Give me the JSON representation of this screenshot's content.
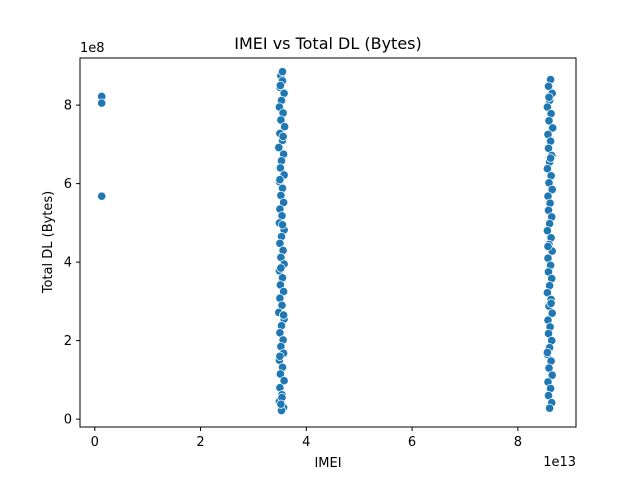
{
  "chart_data": {
    "type": "scatter",
    "title": "IMEI vs Total DL (Bytes)",
    "xlabel": "IMEI",
    "ylabel": "Total DL (Bytes)",
    "x_offset_label": "1e13",
    "y_offset_label": "1e8",
    "xlim": [
      -0.28,
      9.1
    ],
    "ylim": [
      -0.2,
      9.2
    ],
    "xticks": [
      0,
      2,
      4,
      6,
      8
    ],
    "yticks": [
      0,
      2,
      4,
      6,
      8
    ],
    "xtick_labels": [
      "0",
      "2",
      "4",
      "6",
      "8"
    ],
    "ytick_labels": [
      "0",
      "2",
      "4",
      "6",
      "8"
    ],
    "grid": false,
    "legend": "none",
    "color": "#1f77b4",
    "series": [
      {
        "points": [
          [
            0.13,
            8.22
          ],
          [
            0.13,
            8.05
          ],
          [
            0.13,
            5.68
          ],
          [
            3.52,
            8.75
          ],
          [
            3.55,
            8.62
          ],
          [
            3.5,
            8.45
          ],
          [
            3.58,
            8.3
          ],
          [
            3.53,
            8.12
          ],
          [
            3.49,
            7.95
          ],
          [
            3.56,
            7.8
          ],
          [
            3.52,
            7.62
          ],
          [
            3.59,
            7.45
          ],
          [
            3.5,
            7.28
          ],
          [
            3.55,
            7.1
          ],
          [
            3.48,
            6.92
          ],
          [
            3.57,
            6.75
          ],
          [
            3.53,
            6.58
          ],
          [
            3.51,
            6.4
          ],
          [
            3.58,
            6.22
          ],
          [
            3.49,
            6.05
          ],
          [
            3.55,
            5.88
          ],
          [
            3.52,
            5.7
          ],
          [
            3.57,
            5.52
          ],
          [
            3.5,
            5.35
          ],
          [
            3.54,
            5.18
          ],
          [
            3.49,
            5.0
          ],
          [
            3.58,
            4.82
          ],
          [
            3.53,
            4.65
          ],
          [
            3.5,
            4.48
          ],
          [
            3.56,
            4.3
          ],
          [
            3.52,
            4.12
          ],
          [
            3.58,
            3.95
          ],
          [
            3.49,
            3.78
          ],
          [
            3.55,
            3.6
          ],
          [
            3.51,
            3.42
          ],
          [
            3.57,
            3.25
          ],
          [
            3.5,
            3.08
          ],
          [
            3.54,
            2.9
          ],
          [
            3.48,
            2.72
          ],
          [
            3.58,
            2.55
          ],
          [
            3.53,
            2.38
          ],
          [
            3.5,
            2.2
          ],
          [
            3.56,
            2.02
          ],
          [
            3.52,
            1.85
          ],
          [
            3.57,
            1.68
          ],
          [
            3.49,
            1.5
          ],
          [
            3.55,
            1.32
          ],
          [
            3.51,
            1.15
          ],
          [
            3.58,
            0.98
          ],
          [
            3.5,
            0.8
          ],
          [
            3.54,
            0.62
          ],
          [
            3.49,
            0.45
          ],
          [
            3.57,
            0.3
          ],
          [
            3.53,
            0.22
          ],
          [
            3.55,
            8.85
          ],
          [
            3.51,
            8.5
          ],
          [
            3.56,
            7.2
          ],
          [
            3.5,
            6.1
          ],
          [
            3.55,
            4.95
          ],
          [
            3.52,
            3.85
          ],
          [
            3.57,
            2.65
          ],
          [
            3.5,
            1.6
          ],
          [
            3.54,
            0.55
          ],
          [
            3.52,
            0.38
          ],
          [
            8.62,
            8.65
          ],
          [
            8.58,
            8.48
          ],
          [
            8.65,
            8.3
          ],
          [
            8.6,
            8.12
          ],
          [
            8.56,
            7.95
          ],
          [
            8.63,
            7.78
          ],
          [
            8.59,
            7.6
          ],
          [
            8.66,
            7.42
          ],
          [
            8.57,
            7.25
          ],
          [
            8.62,
            7.08
          ],
          [
            8.58,
            6.9
          ],
          [
            8.64,
            6.72
          ],
          [
            8.6,
            6.55
          ],
          [
            8.56,
            6.38
          ],
          [
            8.63,
            6.2
          ],
          [
            8.59,
            6.02
          ],
          [
            8.65,
            5.85
          ],
          [
            8.57,
            5.68
          ],
          [
            8.61,
            5.5
          ],
          [
            8.58,
            5.32
          ],
          [
            8.64,
            5.15
          ],
          [
            8.6,
            4.98
          ],
          [
            8.56,
            4.8
          ],
          [
            8.63,
            4.62
          ],
          [
            8.59,
            4.45
          ],
          [
            8.65,
            4.28
          ],
          [
            8.57,
            4.1
          ],
          [
            8.62,
            3.92
          ],
          [
            8.58,
            3.75
          ],
          [
            8.64,
            3.58
          ],
          [
            8.6,
            3.4
          ],
          [
            8.56,
            3.22
          ],
          [
            8.63,
            3.05
          ],
          [
            8.59,
            2.88
          ],
          [
            8.65,
            2.7
          ],
          [
            8.57,
            2.52
          ],
          [
            8.61,
            2.35
          ],
          [
            8.58,
            2.18
          ],
          [
            8.64,
            2.0
          ],
          [
            8.6,
            1.82
          ],
          [
            8.56,
            1.65
          ],
          [
            8.63,
            1.48
          ],
          [
            8.59,
            1.3
          ],
          [
            8.65,
            1.12
          ],
          [
            8.57,
            0.95
          ],
          [
            8.62,
            0.78
          ],
          [
            8.58,
            0.6
          ],
          [
            8.64,
            0.42
          ],
          [
            8.6,
            0.28
          ],
          [
            8.59,
            8.2
          ],
          [
            8.62,
            6.65
          ],
          [
            8.57,
            4.4
          ],
          [
            8.63,
            2.95
          ],
          [
            8.56,
            1.7
          ]
        ]
      }
    ]
  }
}
